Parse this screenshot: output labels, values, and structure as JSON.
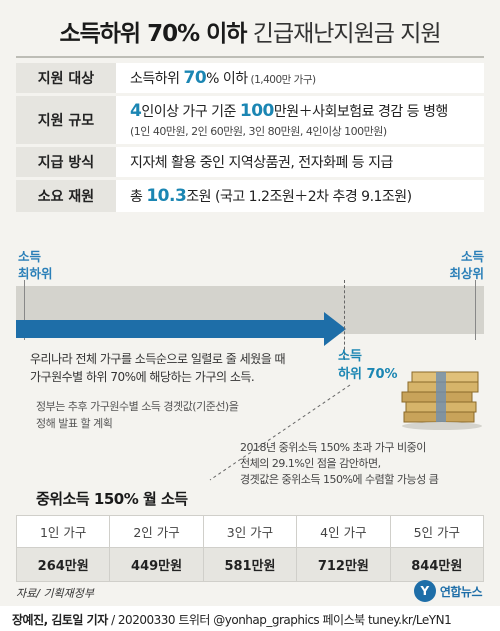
{
  "title": {
    "bold": "소득하위 70% 이하",
    "light": "긴급재난지원금 지원"
  },
  "info": [
    {
      "label": "지원 대상",
      "pre": "소득하위 ",
      "hl": "70",
      "post": "% 이하",
      "small": " (1,400만 가구)",
      "sub": ""
    },
    {
      "label": "지원 규모",
      "pre": "",
      "hl": "4",
      "post": "인이상 가구 기준 ",
      "hl2": "100",
      "post2": "만원＋사회보험료 경감 등 병행",
      "sub": "(1인 40만원, 2인 60만원, 3인 80만원, 4인이상 100만원)"
    },
    {
      "label": "지급 방식",
      "pre": "지자체 활용 중인 지역상품권, 전자화폐 등 지급",
      "sub": ""
    },
    {
      "label": "소요 재원",
      "pre": "총 ",
      "hl": "10.3",
      "post": "조원",
      "small": " (국고 1.2조원＋2차 추경 9.1조원)",
      "sub": ""
    }
  ],
  "axis": {
    "left": [
      "소득",
      "최하위"
    ],
    "right": [
      "소득",
      "최상위"
    ]
  },
  "median_label": [
    "소득",
    "하위 70%"
  ],
  "desc": [
    "우리나라 전체 가구를 소득순으로 일렬로 줄 세웠을 때",
    "가구원수별 하위 70%에 해당하는 가구의 소득."
  ],
  "desc2": [
    "정부는 추후 가구원수별 소득 경곗값(기준선)을",
    "정해 발표 할 계획"
  ],
  "note": [
    "2018년 중위소득 150% 초과 가구 비중이",
    "전체의 29.1%인 점을 감안하면,",
    "경곗값은 중위소득 150%에 수렴할 가능성 큼"
  ],
  "section_title": "중위소득 150% 월 소득",
  "table": {
    "headers": [
      "1인 가구",
      "2인 가구",
      "3인 가구",
      "4인 가구",
      "5인 가구"
    ],
    "values": [
      "264만원",
      "449만원",
      "581만원",
      "712만원",
      "844만원"
    ]
  },
  "source": "자료/ 기획재정부",
  "logo": {
    "mark": "Y",
    "text": "연합뉴스"
  },
  "credit": {
    "name": "장예진, 김토일 기자",
    "rest": " / 20200330 트위터 @yonhap_graphics  페이스북 tuney.kr/LeYN1"
  }
}
